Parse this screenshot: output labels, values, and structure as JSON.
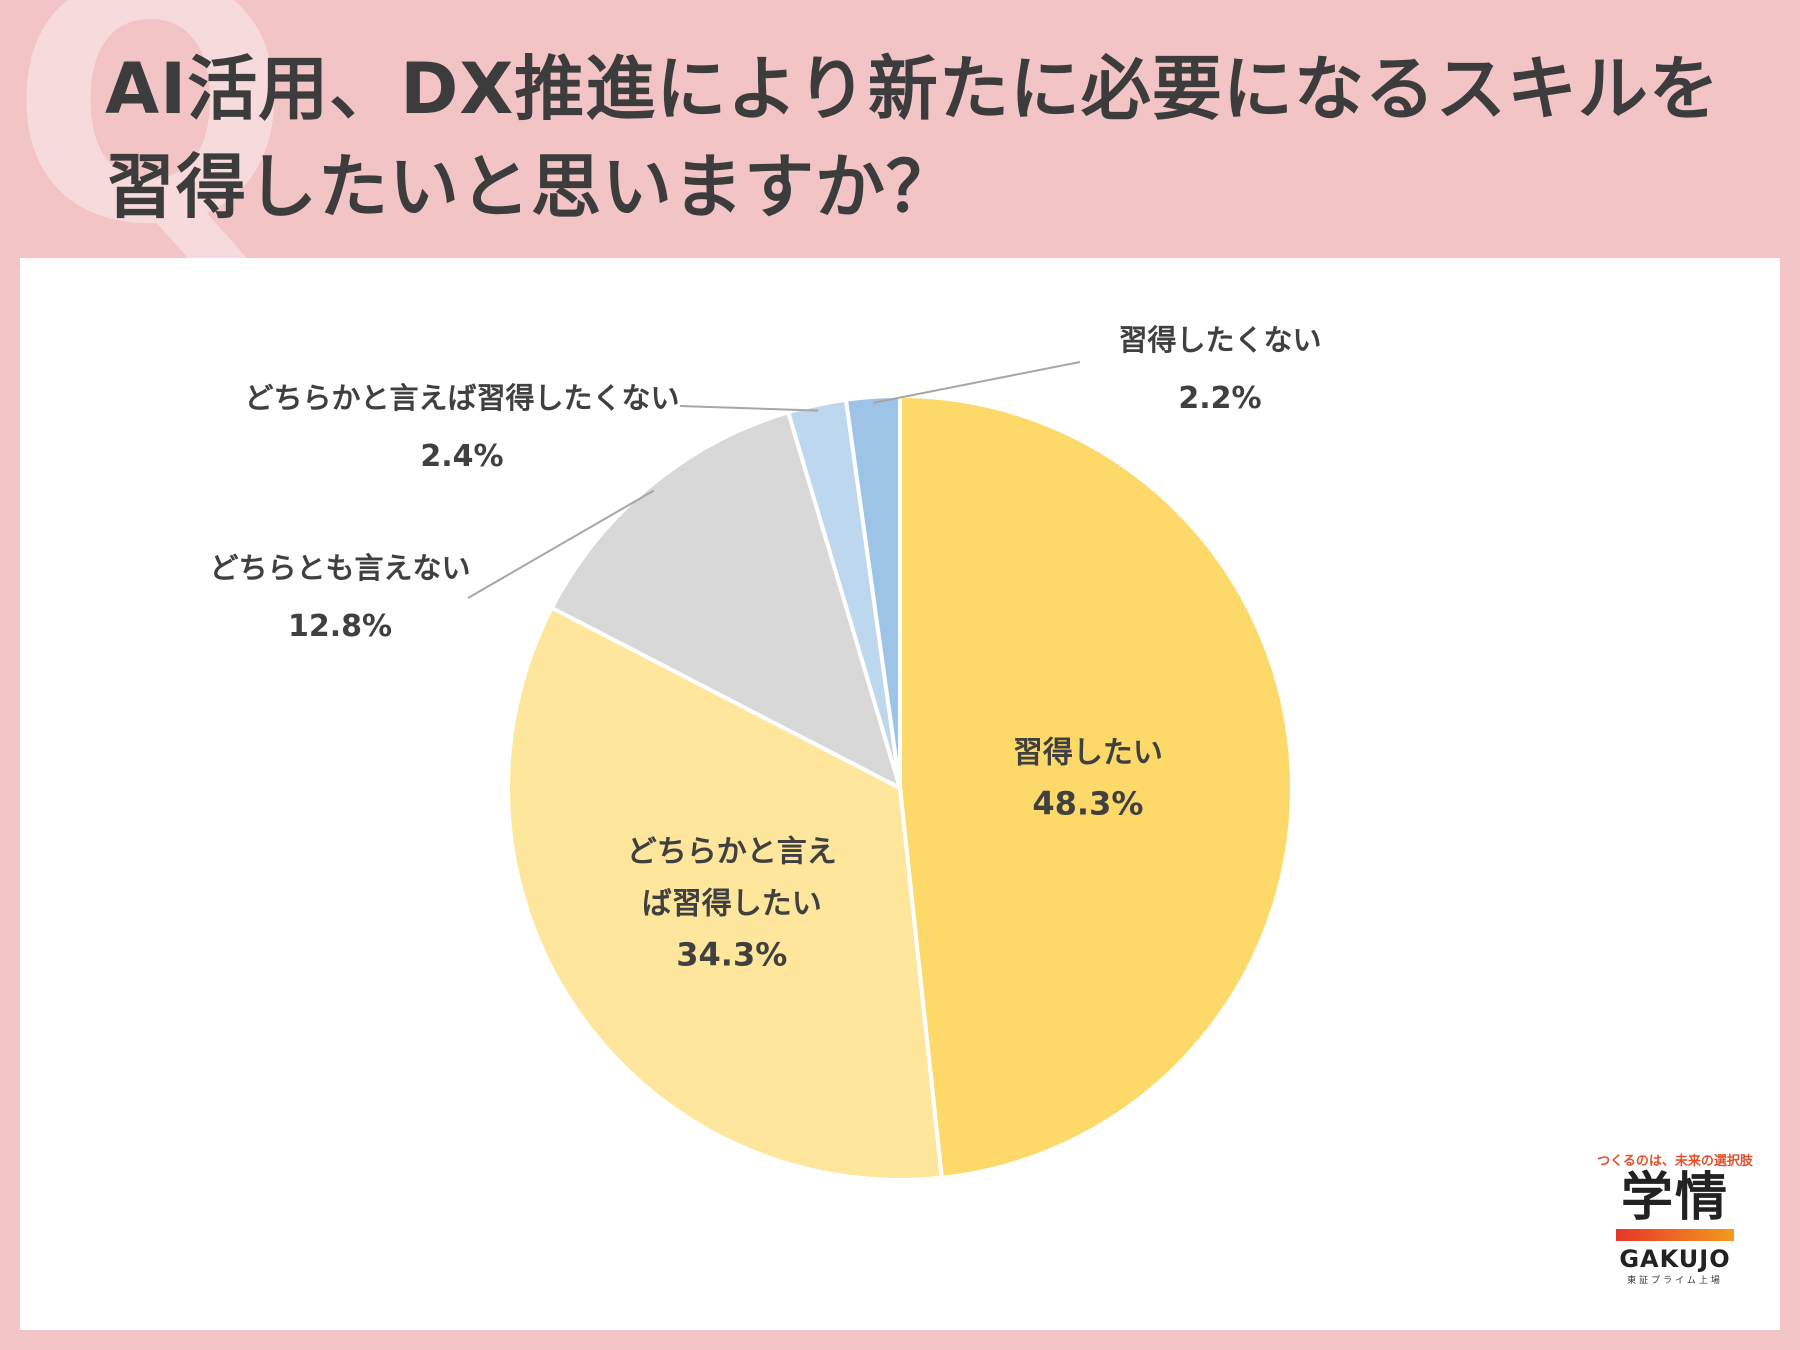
{
  "title": "AI活用、DX推進により新たに必要になるスキルを習得したいと思いますか？",
  "decor": {
    "q_letter": "Q"
  },
  "chart_data": {
    "type": "pie",
    "start": "12 o'clock, clockwise",
    "slices": [
      {
        "label": "習得したい",
        "value": 48.3,
        "value_label": "48.3%",
        "color": "#fdd96a"
      },
      {
        "label": "どちらかと言えば習得したい",
        "label_lines": [
          "どちらかと言え",
          "ば習得したい"
        ],
        "value": 34.3,
        "value_label": "34.3%",
        "color": "#fee69c"
      },
      {
        "label": "どちらとも言えない",
        "value": 12.8,
        "value_label": "12.8%",
        "color": "#d8d8d8"
      },
      {
        "label": "どちらかと言えば習得したくない",
        "value": 2.4,
        "value_label": "2.4%",
        "color": "#bdd7ee"
      },
      {
        "label": "習得したくない",
        "value": 2.2,
        "value_label": "2.2%",
        "color": "#9dc3e6"
      }
    ]
  },
  "logo": {
    "tagline": "つくるのは、未来の選択肢",
    "mark": "学情",
    "wordmark": "GAKUJO",
    "sub": "東証プライム上場"
  }
}
